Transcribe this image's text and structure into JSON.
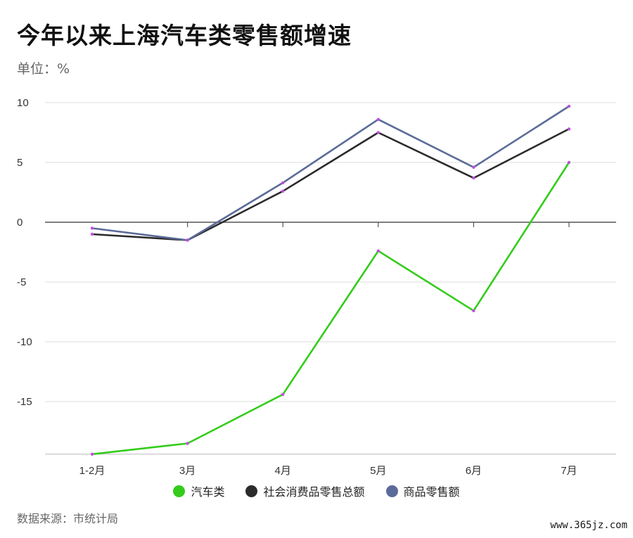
{
  "title": "今年以来上海汽车类零售额增速",
  "unit_label": "单位：%",
  "source": "数据来源：市统计局",
  "watermark": "www.365jz.com",
  "chart_data": {
    "type": "line",
    "categories": [
      "1-2月",
      "3月",
      "4月",
      "5月",
      "6月",
      "7月"
    ],
    "series": [
      {
        "name": "汽车类",
        "color": "#33cc1a",
        "values": [
          -19.4,
          -18.5,
          -14.4,
          -2.4,
          -7.4,
          5.0
        ]
      },
      {
        "name": "社会消费品零售总额",
        "color": "#2b2b2b",
        "values": [
          -1.0,
          -1.5,
          2.6,
          7.5,
          3.7,
          7.8
        ]
      },
      {
        "name": "商品零售额",
        "color": "#5a6b99",
        "values": [
          -0.5,
          -1.5,
          3.3,
          8.6,
          4.6,
          9.7
        ]
      }
    ],
    "marker_color": "#c050e0",
    "yticks": [
      10,
      5,
      0,
      -5,
      -10,
      -15
    ],
    "ylim": [
      -19.4,
      10
    ],
    "grid": true,
    "legend_position": "bottom"
  }
}
